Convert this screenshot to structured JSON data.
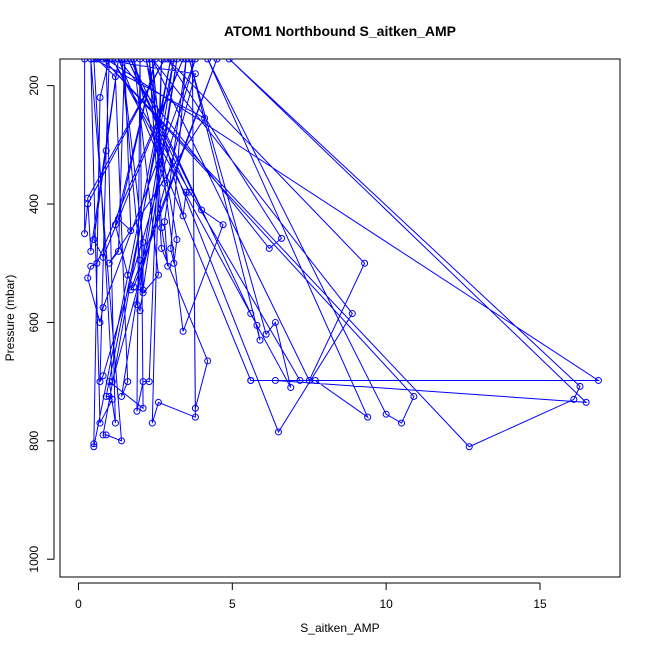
{
  "chart_data": {
    "type": "line",
    "title": "ATOM1 Northbound S_aitken_AMP",
    "xlabel": "S_aitken_AMP",
    "ylabel": "Pressure (mbar)",
    "xlim": [
      -0.6,
      17.6
    ],
    "ylim": [
      1030,
      155
    ],
    "y_reversed": true,
    "x_ticks": [
      0,
      5,
      10,
      15
    ],
    "y_ticks": [
      200,
      400,
      600,
      800,
      1000
    ],
    "grid": false,
    "legend": "none",
    "colors": {
      "series": "#0000ff",
      "axis": "#000000",
      "background": "#ffffff"
    },
    "marker": "open-circle",
    "series": [
      {
        "points": [
          [
            0.2,
            155
          ],
          [
            0.2,
            450
          ],
          [
            0.3,
            400
          ],
          [
            2.8,
            155
          ],
          [
            0.3,
            390
          ],
          [
            0.4,
            480
          ],
          [
            1.3,
            155
          ],
          [
            0.5,
            460
          ],
          [
            0.8,
            490
          ],
          [
            3.4,
            155
          ],
          [
            0.6,
            500
          ],
          [
            0.4,
            505
          ],
          [
            0.3,
            525
          ],
          [
            0.7,
            600
          ],
          [
            0.8,
            575
          ],
          [
            3.8,
            155
          ],
          [
            0.8,
            690
          ],
          [
            0.7,
            700
          ],
          [
            0.9,
            310
          ],
          [
            1.0,
            155
          ],
          [
            0.7,
            220
          ],
          [
            0.5,
            805
          ],
          [
            0.5,
            810
          ],
          [
            3.0,
            155
          ],
          [
            0.8,
            790
          ],
          [
            0.9,
            790
          ],
          [
            1.4,
            800
          ],
          [
            0.4,
            155
          ],
          [
            0.7,
            770
          ],
          [
            1.1,
            730
          ],
          [
            1.0,
            725
          ],
          [
            0.9,
            725
          ],
          [
            3.1,
            155
          ],
          [
            1.4,
            725
          ],
          [
            1.6,
            700
          ],
          [
            1.2,
            185
          ],
          [
            0.6,
            155
          ],
          [
            3.8,
            180
          ],
          [
            1.1,
            700
          ],
          [
            0.5,
            155
          ],
          [
            4.1,
            255
          ],
          [
            1.0,
            500
          ],
          [
            1.3,
            480
          ],
          [
            1.5,
            155
          ],
          [
            1.7,
            445
          ],
          [
            1.3,
            425
          ],
          [
            2.5,
            155
          ],
          [
            1.2,
            435
          ],
          [
            1.6,
            520
          ],
          [
            1.8,
            540
          ],
          [
            4.5,
            155
          ],
          [
            1.7,
            545
          ],
          [
            2.1,
            545
          ],
          [
            2.1,
            465
          ],
          [
            1.4,
            155
          ],
          [
            2.0,
            495
          ],
          [
            1.9,
            570
          ],
          [
            2.0,
            580
          ],
          [
            3.2,
            155
          ],
          [
            2.0,
            540
          ],
          [
            2.1,
            550
          ],
          [
            2.6,
            520
          ],
          [
            1.8,
            155
          ],
          [
            2.8,
            365
          ],
          [
            2.4,
            155
          ],
          [
            2.7,
            440
          ],
          [
            2.9,
            505
          ],
          [
            2.8,
            430
          ],
          [
            3.5,
            155
          ],
          [
            3.0,
            475
          ],
          [
            3.1,
            500
          ],
          [
            3.2,
            460
          ],
          [
            2.2,
            155
          ],
          [
            3.4,
            420
          ],
          [
            3.5,
            380
          ],
          [
            3.6,
            380
          ],
          [
            1.6,
            155
          ],
          [
            4.0,
            410
          ],
          [
            4.7,
            435
          ],
          [
            3.4,
            615
          ],
          [
            2.3,
            155
          ],
          [
            2.7,
            475
          ],
          [
            4.2,
            665
          ],
          [
            3.8,
            745
          ],
          [
            3.7,
            155
          ],
          [
            3.8,
            760
          ],
          [
            2.6,
            735
          ],
          [
            2.4,
            770
          ],
          [
            2.7,
            155
          ],
          [
            2.3,
            700
          ],
          [
            2.1,
            700
          ],
          [
            1.9,
            750
          ],
          [
            2.0,
            155
          ],
          [
            2.1,
            745
          ],
          [
            1.0,
            700
          ],
          [
            1.2,
            770
          ],
          [
            0.9,
            155
          ],
          [
            16.9,
            698
          ],
          [
            5.6,
            698
          ],
          [
            1.3,
            155
          ],
          [
            6.2,
            475
          ],
          [
            6.6,
            458
          ],
          [
            2.9,
            155
          ],
          [
            9.3,
            500
          ],
          [
            7.5,
            698
          ],
          [
            2.4,
            155
          ],
          [
            8.9,
            585
          ],
          [
            6.5,
            785
          ],
          [
            1.7,
            155
          ],
          [
            5.6,
            585
          ],
          [
            5.8,
            605
          ],
          [
            5.9,
            630
          ],
          [
            3.6,
            155
          ],
          [
            6.1,
            620
          ],
          [
            6.4,
            600
          ],
          [
            6.9,
            710
          ],
          [
            1.1,
            155
          ],
          [
            7.2,
            698
          ],
          [
            7.7,
            698
          ],
          [
            9.4,
            760
          ],
          [
            4.2,
            155
          ],
          [
            10.0,
            755
          ],
          [
            10.5,
            770
          ],
          [
            10.9,
            725
          ],
          [
            0.8,
            155
          ],
          [
            12.7,
            810
          ],
          [
            16.1,
            730
          ],
          [
            16.3,
            708
          ],
          [
            4.9,
            155
          ],
          [
            16.5,
            735
          ],
          [
            6.4,
            698
          ],
          [
            5.6,
            698
          ]
        ]
      }
    ]
  }
}
